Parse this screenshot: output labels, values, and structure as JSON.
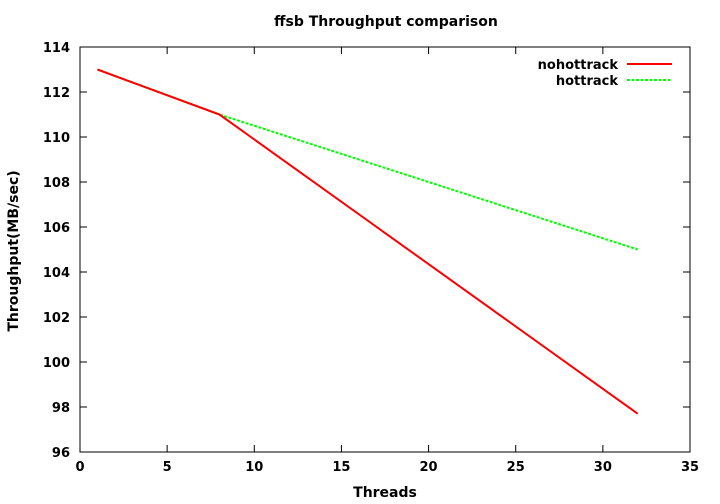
{
  "chart_data": {
    "type": "line",
    "title": "ffsb Throughput comparison",
    "xlabel": "Threads",
    "ylabel": "Throughput(MB/sec)",
    "xlim": [
      0,
      35
    ],
    "ylim": [
      96,
      114
    ],
    "x_ticks": [
      "0",
      "5",
      "10",
      "15",
      "20",
      "25",
      "30",
      "35"
    ],
    "y_ticks": [
      "96",
      "98",
      "100",
      "102",
      "104",
      "106",
      "108",
      "110",
      "112",
      "114"
    ],
    "grid": false,
    "legend_position": "top-right",
    "series": [
      {
        "name": "nohottrack",
        "color": "#ff0000",
        "dash": "solid",
        "x": [
          1,
          8,
          32
        ],
        "y": [
          113.0,
          111.0,
          97.7
        ]
      },
      {
        "name": "hottrack",
        "color": "#00ff00",
        "dash": "dashed",
        "x": [
          1,
          8,
          32
        ],
        "y": [
          113.0,
          111.0,
          105.0
        ]
      }
    ]
  }
}
